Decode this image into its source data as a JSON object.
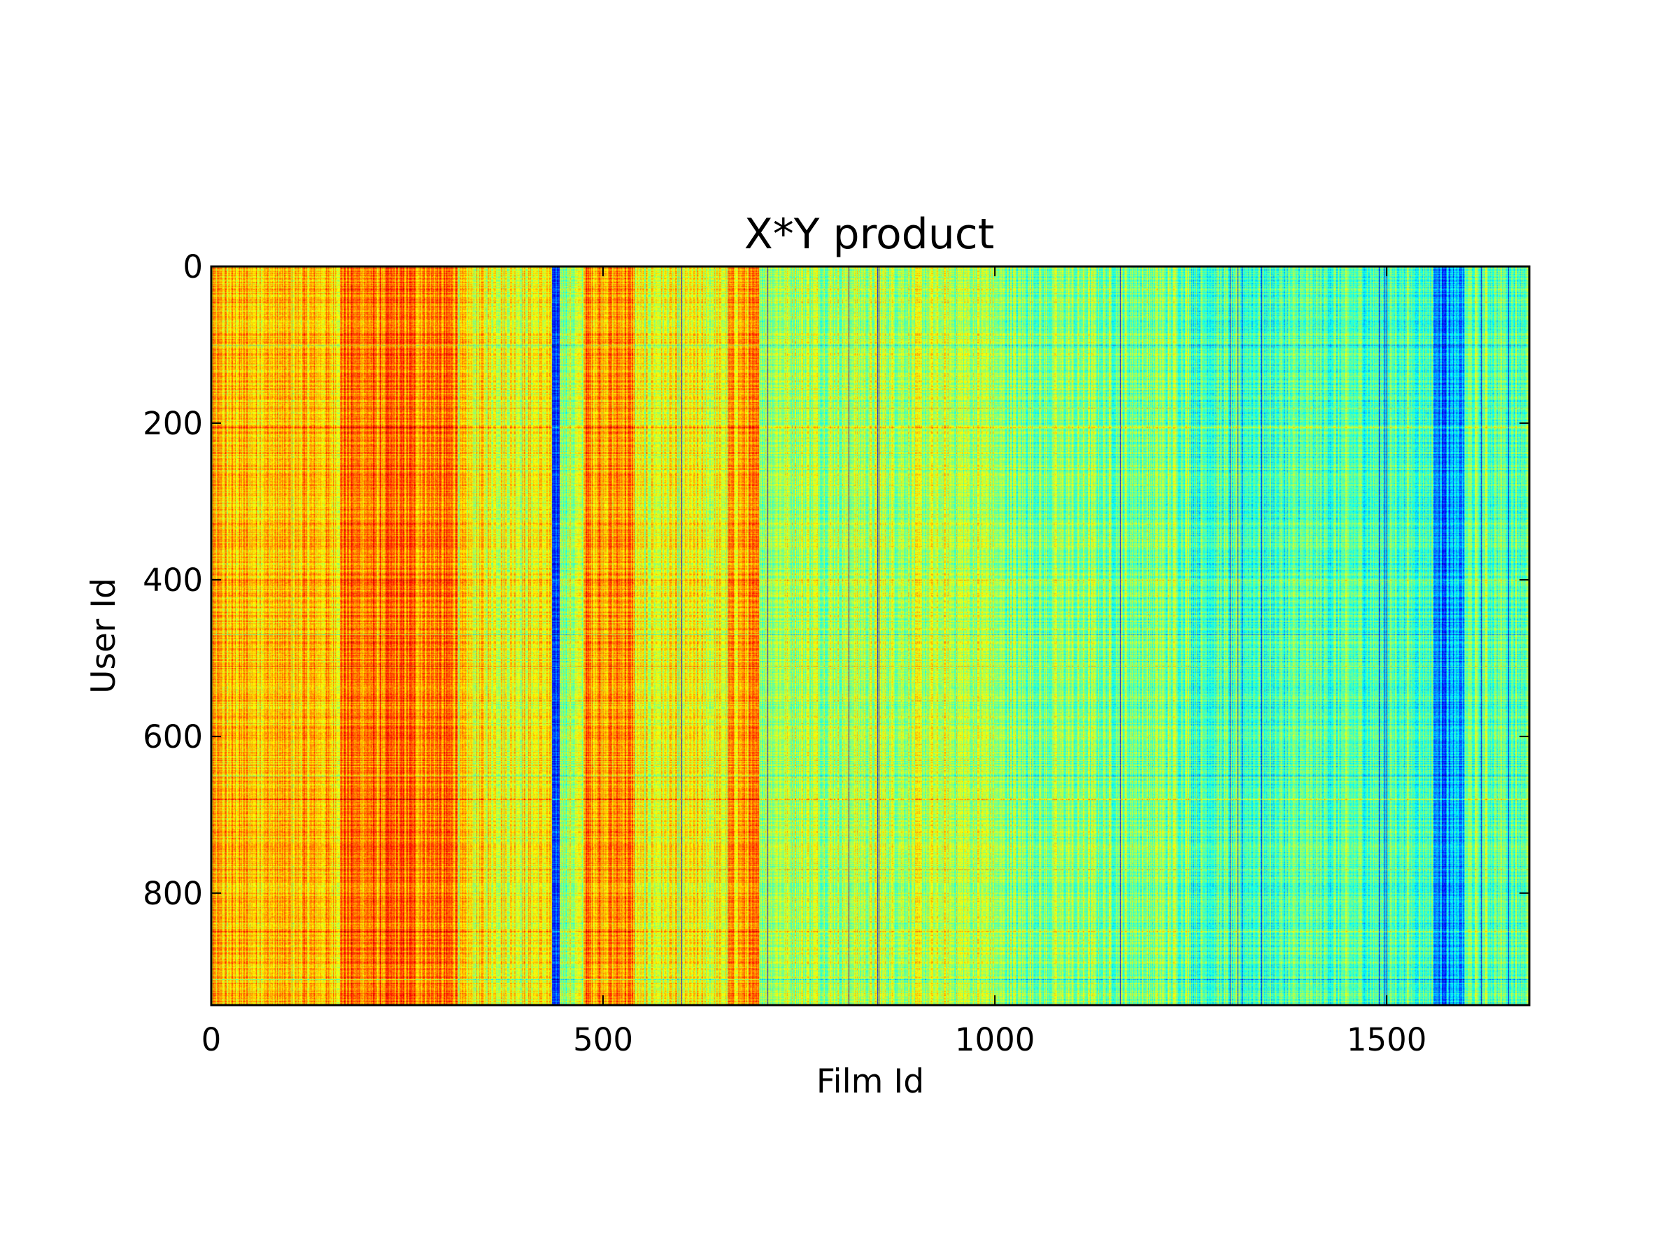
{
  "chart_data": {
    "type": "heatmap",
    "title": "X*Y product",
    "xlabel": "Film Id",
    "ylabel": "User Id",
    "xlim": [
      0,
      1682
    ],
    "ylim": [
      943,
      0
    ],
    "x_ticks": [
      0,
      500,
      1000,
      1500
    ],
    "x_tick_labels": [
      "0",
      "500",
      "1000",
      "1500"
    ],
    "y_ticks": [
      0,
      200,
      400,
      600,
      800
    ],
    "y_tick_labels": [
      "0",
      "200",
      "400",
      "600",
      "800"
    ],
    "colormap": "jet",
    "color_min": "#00007f",
    "color_max": "#7f0000",
    "grid": false,
    "legend": "none",
    "column_intensity_profile": [
      {
        "film_id_range": [
          0,
          165
        ],
        "level": 0.68
      },
      {
        "film_id_range": [
          165,
          315
        ],
        "level": 0.75
      },
      {
        "film_id_range": [
          315,
          435
        ],
        "level": 0.62
      },
      {
        "film_id_range": [
          435,
          445
        ],
        "level": 0.15
      },
      {
        "film_id_range": [
          445,
          475
        ],
        "level": 0.55
      },
      {
        "film_id_range": [
          475,
          540
        ],
        "level": 0.73
      },
      {
        "film_id_range": [
          540,
          660
        ],
        "level": 0.6
      },
      {
        "film_id_range": [
          660,
          700
        ],
        "level": 0.7
      },
      {
        "film_id_range": [
          700,
          1000
        ],
        "level": 0.55
      },
      {
        "film_id_range": [
          1000,
          1250
        ],
        "level": 0.5
      },
      {
        "film_id_range": [
          1250,
          1560
        ],
        "level": 0.45
      },
      {
        "film_id_range": [
          1560,
          1600
        ],
        "level": 0.28
      },
      {
        "film_id_range": [
          1600,
          1682
        ],
        "level": 0.48
      }
    ],
    "dark_column_film_ids": [
      438,
      441,
      600,
      710,
      813,
      850,
      852,
      1160,
      1300,
      1310,
      1315,
      1340,
      1490,
      1497,
      1500,
      1565,
      1570,
      1575,
      1620,
      1655
    ],
    "highlight_row_user_ids": [
      100,
      180,
      205,
      400,
      470,
      510,
      650,
      680,
      770,
      848,
      910
    ]
  }
}
